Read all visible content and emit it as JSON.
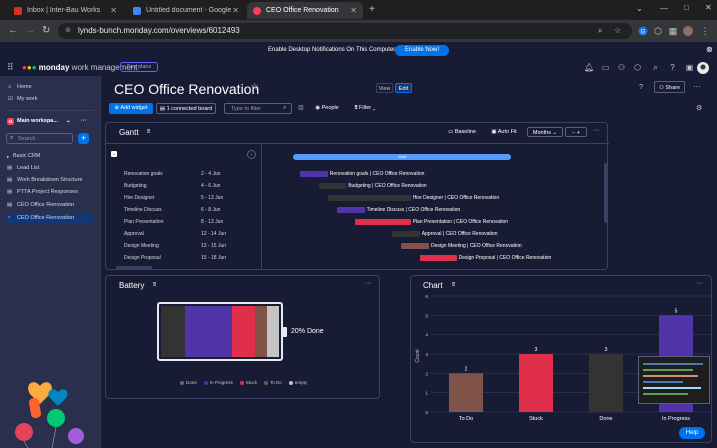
{
  "browser": {
    "tabs": [
      {
        "label": "Inbox | Inter-Bau Works",
        "favicon_color": "#d93025"
      },
      {
        "label": "Untitled document - Google Docs",
        "favicon_color": "#4285f4"
      },
      {
        "label": "CEO Office Renovation",
        "favicon_color": "#ff3d57"
      }
    ],
    "url": "lynds-bunch.monday.com/overviews/6012493"
  },
  "notification": {
    "text": "Enable Desktop Notifications On This Computer",
    "button": "Enable Now!"
  },
  "header": {
    "logo_bold": "monday",
    "logo_rest": " work management",
    "see_plans": "See plans"
  },
  "sidebar": {
    "home": "Home",
    "my_work": "My work",
    "workspace": "Main workspa...",
    "search_placeholder": "Search",
    "items": [
      "Basic CRM",
      "Lead List",
      "Work Breakdown Structure",
      "PTTA Project Responses",
      "CEO Office Renovation",
      "CEO Office Renovation"
    ]
  },
  "board": {
    "title": "CEO Office Renovation",
    "view": "View",
    "edit": "Edit",
    "share": "Share",
    "add_widget": "Add widget",
    "connected": "1 connected board",
    "filter_placeholder": "Type to filter",
    "people": "People",
    "filter": "Filter"
  },
  "gantt": {
    "title": "Gantt",
    "baseline": "Baseline",
    "autofit": "Auto Fit",
    "zoom": "Months",
    "month": "June",
    "rows": [
      {
        "name": "Renovation goals",
        "dates": "2 - 4 Jun",
        "label": "Renovation goals | CEO Office Renovation",
        "color": "#5034a8"
      },
      {
        "name": "Budgeting",
        "dates": "4 - 6 Jun",
        "label": "Budgeting | CEO Office Renovation",
        "color": "#333"
      },
      {
        "name": "Hire Designer",
        "dates": "5 - 13 Jun",
        "label": "Hire Designer | CEO Office Renovation",
        "color": "#333"
      },
      {
        "name": "Timeline Discuss",
        "dates": "6 - 8 Jun",
        "label": "Timeline Discuss | CEO Office Renovation",
        "color": "#5034a8"
      },
      {
        "name": "Plan Presentation",
        "dates": "8 - 13 Jun",
        "label": "Plan Presentation | CEO Office Renovation",
        "color": "#df2f4a"
      },
      {
        "name": "Approval",
        "dates": "12 - 14 Jun",
        "label": "Approval | CEO Office Renovation",
        "color": "#333"
      },
      {
        "name": "Design Meeting",
        "dates": "13 - 15 Jun",
        "label": "Design Meeting | CEO Office Renovation",
        "color": "#7f5347"
      },
      {
        "name": "Design Proposal",
        "dates": "15 - 18 Jun",
        "label": "Design Proposal | CEO Office Renovation",
        "color": "#df2f4a"
      }
    ]
  },
  "battery": {
    "title": "Battery",
    "done_text": "20% Done",
    "segments": [
      {
        "label": "Done",
        "color": "#333333",
        "fraction": 0.2
      },
      {
        "label": "In Progress",
        "color": "#5034a8",
        "fraction": 0.4
      },
      {
        "label": "Stuck",
        "color": "#df2f4a",
        "fraction": 0.2
      },
      {
        "label": "To Do",
        "color": "#7f5347",
        "fraction": 0.1
      },
      {
        "label": "empty",
        "color": "#c4c4c4",
        "fraction": 0.1
      }
    ]
  },
  "chart": {
    "title": "Chart",
    "ylabel": "Count"
  },
  "chart_data": {
    "type": "bar",
    "categories": [
      "To Do",
      "Stuck",
      "Done",
      "In Progress"
    ],
    "values": [
      2,
      3,
      3,
      5
    ],
    "colors": [
      "#7f5347",
      "#df2f4a",
      "#333333",
      "#5034a8"
    ],
    "ylabel": "Count",
    "ylim": [
      0,
      6
    ],
    "yticks": [
      0,
      1,
      2,
      3,
      4,
      5,
      6
    ]
  },
  "help": "Help"
}
